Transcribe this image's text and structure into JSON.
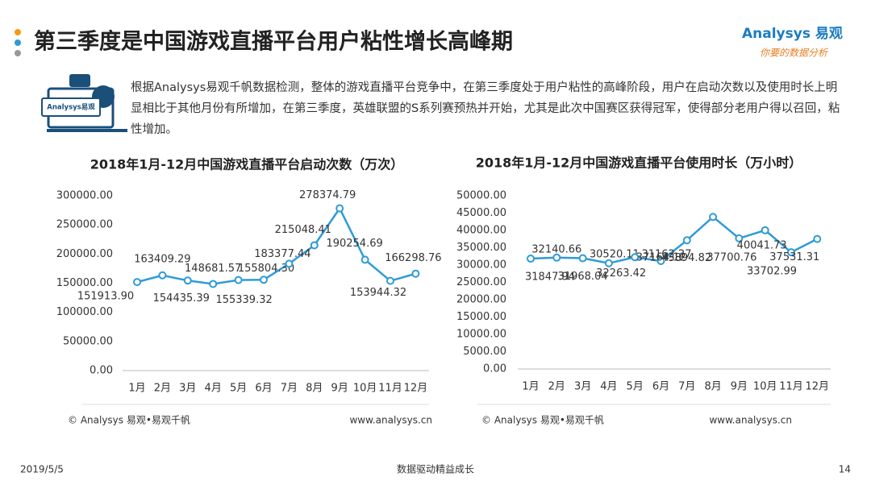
{
  "header": {
    "title": "第三季度是中国游戏直播平台用户粘性增长高峰期",
    "logo": "Analysys 易观",
    "logo_tagline": "你要的数据分析"
  },
  "intro": {
    "icon_label": "Analysys易观",
    "text": "根据Analysys易观千帆数据检测，整体的游戏直播平台竞争中，在第三季度处于用户粘性的高峰阶段，用户在启动次数以及使用时长上明显相比于其他月份有所增加，在第三季度，英雄联盟的S系列赛预热并开始，尤其是此次中国赛区获得冠军，使得部分老用户得以召回，粘性增加。"
  },
  "chart_data": [
    {
      "type": "line",
      "title": "2018年1月-12月中国游戏直播平台启动次数（万次）",
      "categories": [
        "1月",
        "2月",
        "3月",
        "4月",
        "5月",
        "6月",
        "7月",
        "8月",
        "9月",
        "10月",
        "11月",
        "12月"
      ],
      "values": [
        151913.9,
        163409.29,
        154435.39,
        148681.57,
        155339.32,
        155804.3,
        183377.44,
        215048.41,
        278374.79,
        190254.69,
        153944.32,
        166298.76
      ],
      "value_labels": [
        "151913.90",
        "163409.29",
        "154435.39",
        "148681.57",
        "155339.32",
        "155804.30",
        "183377.44",
        "215048.41",
        "278374.79",
        "190254.69",
        "153944.32",
        "166298.76"
      ],
      "color": "#2e9bd6",
      "ylim": [
        0,
        300000
      ],
      "yticks": [
        {
          "value": 0,
          "label": "0.00"
        },
        {
          "value": 50000,
          "label": "50000.00"
        },
        {
          "value": 100000,
          "label": "100000.00"
        },
        {
          "value": 150000,
          "label": "150000.00"
        },
        {
          "value": 200000,
          "label": "200000.00"
        },
        {
          "value": 250000,
          "label": "250000.00"
        },
        {
          "value": 300000,
          "label": "300000.00"
        }
      ],
      "grid": false,
      "source": "© Analysys 易观•易观千帆",
      "website": "www.analysys.cn"
    },
    {
      "type": "line",
      "title": "2018年1月-12月中国游戏直播平台使用时长（万小时）",
      "categories": [
        "1月",
        "2月",
        "3月",
        "4月",
        "5月",
        "6月",
        "7月",
        "8月",
        "9月",
        "10月",
        "11月",
        "12月"
      ],
      "values": [
        31847.94,
        32140.66,
        31968.04,
        30520.11,
        32263.42,
        31162.27,
        37164.12,
        43894.82,
        37700.76,
        40041.73,
        33702.99,
        37531.31
      ],
      "color": "#2e9bd6",
      "ylim": [
        0,
        50000
      ],
      "yticks": [
        {
          "value": 0,
          "label": "0.00"
        },
        {
          "value": 5000,
          "label": "5000.00"
        },
        {
          "value": 10000,
          "label": "10000.00"
        },
        {
          "value": 15000,
          "label": "15000.00"
        },
        {
          "value": 20000,
          "label": "20000.00"
        },
        {
          "value": 25000,
          "label": "25000.00"
        },
        {
          "value": 30000,
          "label": "30000.00"
        },
        {
          "value": 35000,
          "label": "35000.00"
        },
        {
          "value": 40000,
          "label": "40000.00"
        },
        {
          "value": 45000,
          "label": "45000.00"
        },
        {
          "value": 50000,
          "label": "50000.00"
        }
      ],
      "grid": false,
      "source": "© Analysys 易观•易观千帆",
      "website": "www.analysys.cn"
    }
  ],
  "footer": {
    "date": "2019/5/5",
    "slogan": "数据驱动精益成长",
    "page": "14"
  }
}
